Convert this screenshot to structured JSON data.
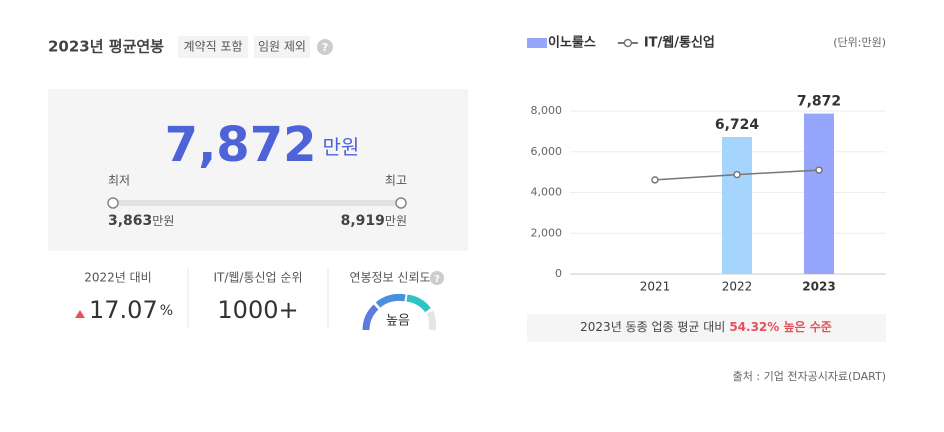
{
  "header": {
    "title": "2023년 평균연봉",
    "tags": [
      "계약직 포함",
      "임원 제외"
    ],
    "help": "?"
  },
  "salary": {
    "value": "7,872",
    "unit": "만원",
    "min_label": "최저",
    "max_label": "최고",
    "min_value": "3,863",
    "min_unit": "만원",
    "max_value": "8,919",
    "max_unit": "만원"
  },
  "stats": [
    {
      "label": "2022년 대비",
      "value": "17.07",
      "unit": "%"
    },
    {
      "label": "IT/웹/통신업 순위",
      "value": "1000+"
    },
    {
      "label": "연봉정보 신뢰도",
      "value": "높음",
      "help": "?"
    }
  ],
  "chart_data": {
    "type": "bar",
    "unit": "(단위:만원)",
    "categories": [
      "2021",
      "2022",
      "2023"
    ],
    "series": [
      {
        "name": "이노룰스",
        "type": "bar",
        "color": "#96a6fc",
        "bar_colors": [
          "#96a6fc",
          "#a5d4fc",
          "#96a6fc"
        ],
        "values": [
          null,
          6724,
          7872
        ],
        "value_labels": [
          null,
          "6,724",
          "7,872"
        ]
      },
      {
        "name": "IT/웹/통신업",
        "type": "line",
        "color": "#777777",
        "values": [
          4620,
          4880,
          5100
        ]
      }
    ],
    "ylim": [
      0,
      8000
    ],
    "yticks": [
      0,
      {
        "value": 2000,
        "label": "2,000"
      },
      {
        "value": 4000,
        "label": "4,000"
      },
      {
        "value": 6000,
        "label": "6,000"
      },
      {
        "value": 8000,
        "label": "8,000"
      }
    ],
    "grid": true,
    "note": "2023년 동종 업종 평균 대비",
    "note_highlight": "54.32% 높은 수준",
    "source": "출처 : 기업 전자공시자료(DART)"
  }
}
